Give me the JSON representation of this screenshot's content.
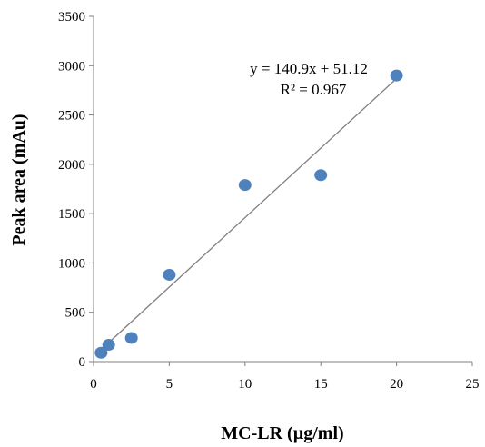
{
  "chart_data": {
    "type": "scatter",
    "title": "",
    "xlabel": "MC-LR (µg/ml)",
    "ylabel": "Peak area (mAu)",
    "xlim": [
      0,
      25
    ],
    "ylim": [
      0,
      3500
    ],
    "x_ticks": [
      "0",
      "5",
      "10",
      "15",
      "20",
      "25"
    ],
    "y_ticks": [
      "0",
      "500",
      "1000",
      "1500",
      "2000",
      "2500",
      "3000",
      "3500"
    ],
    "grid": false,
    "legend": "none",
    "series": [
      {
        "points": [
          {
            "x": 0.5,
            "y": 90
          },
          {
            "x": 1,
            "y": 170
          },
          {
            "x": 2.5,
            "y": 240
          },
          {
            "x": 5,
            "y": 880
          },
          {
            "x": 10,
            "y": 1790
          },
          {
            "x": 15,
            "y": 1890
          },
          {
            "x": 20,
            "y": 2900
          }
        ],
        "color": "#4f81bd"
      }
    ],
    "trendline": {
      "slope": 140.9,
      "intercept": 51.12,
      "x_range": [
        0.5,
        20
      ],
      "color": "#808080",
      "equation": "y = 140.9x + 51.12",
      "r2_label": "R² = 0.967"
    }
  }
}
